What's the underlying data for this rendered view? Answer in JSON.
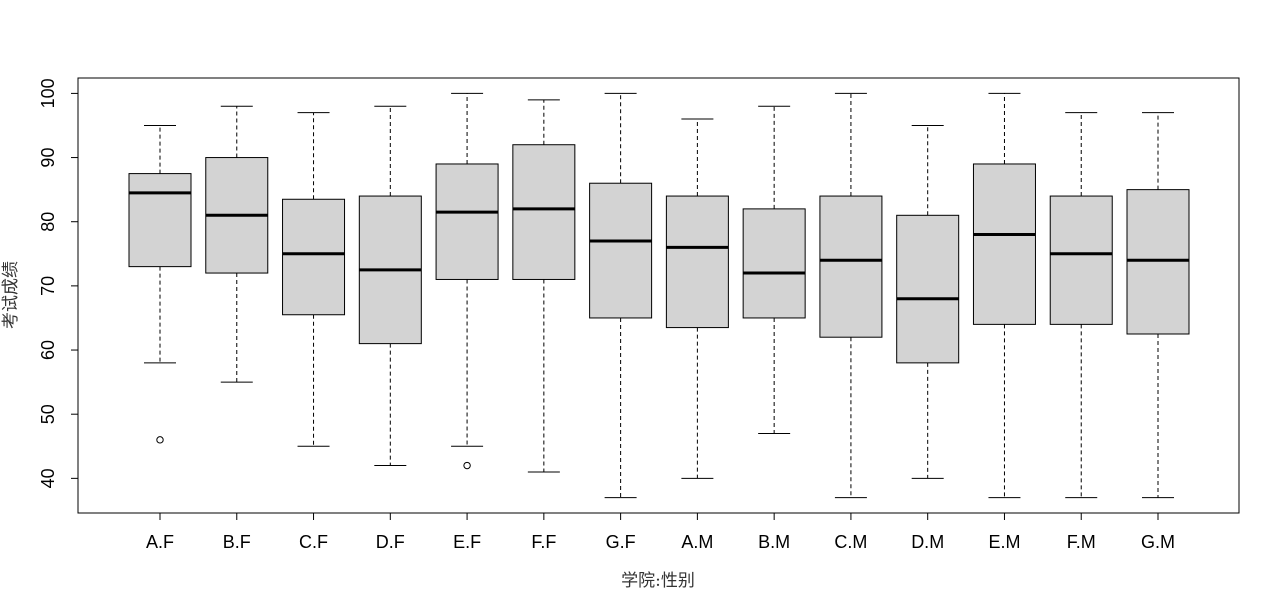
{
  "chart_data": {
    "type": "boxplot",
    "xlabel": "学院:性别",
    "ylabel": "考试成绩",
    "ylim": [
      34.6,
      102.4
    ],
    "yticks": [
      40,
      50,
      60,
      70,
      80,
      90,
      100
    ],
    "box_fill": "#d3d3d3",
    "categories": [
      "A.F",
      "B.F",
      "C.F",
      "D.F",
      "E.F",
      "F.F",
      "G.F",
      "A.M",
      "B.M",
      "C.M",
      "D.M",
      "E.M",
      "F.M",
      "G.M"
    ],
    "boxes": [
      {
        "whisker_low": 58,
        "q1": 73,
        "median": 84.5,
        "q3": 87.5,
        "whisker_high": 95,
        "outliers": [
          46
        ]
      },
      {
        "whisker_low": 55,
        "q1": 72,
        "median": 81,
        "q3": 90,
        "whisker_high": 98,
        "outliers": []
      },
      {
        "whisker_low": 45,
        "q1": 65.5,
        "median": 75,
        "q3": 83.5,
        "whisker_high": 97,
        "outliers": []
      },
      {
        "whisker_low": 42,
        "q1": 61,
        "median": 72.5,
        "q3": 84,
        "whisker_high": 98,
        "outliers": []
      },
      {
        "whisker_low": 45,
        "q1": 71,
        "median": 81.5,
        "q3": 89,
        "whisker_high": 100,
        "outliers": [
          42
        ]
      },
      {
        "whisker_low": 41,
        "q1": 71,
        "median": 82,
        "q3": 92,
        "whisker_high": 99,
        "outliers": []
      },
      {
        "whisker_low": 37,
        "q1": 65,
        "median": 77,
        "q3": 86,
        "whisker_high": 100,
        "outliers": []
      },
      {
        "whisker_low": 40,
        "q1": 63.5,
        "median": 76,
        "q3": 84,
        "whisker_high": 96,
        "outliers": []
      },
      {
        "whisker_low": 47,
        "q1": 65,
        "median": 72,
        "q3": 82,
        "whisker_high": 98,
        "outliers": []
      },
      {
        "whisker_low": 37,
        "q1": 62,
        "median": 74,
        "q3": 84,
        "whisker_high": 100,
        "outliers": []
      },
      {
        "whisker_low": 40,
        "q1": 58,
        "median": 68,
        "q3": 81,
        "whisker_high": 95,
        "outliers": []
      },
      {
        "whisker_low": 37,
        "q1": 64,
        "median": 78,
        "q3": 89,
        "whisker_high": 100,
        "outliers": []
      },
      {
        "whisker_low": 37,
        "q1": 64,
        "median": 75,
        "q3": 84,
        "whisker_high": 97,
        "outliers": []
      },
      {
        "whisker_low": 37,
        "q1": 62.5,
        "median": 74,
        "q3": 85,
        "whisker_high": 97,
        "outliers": []
      }
    ]
  }
}
